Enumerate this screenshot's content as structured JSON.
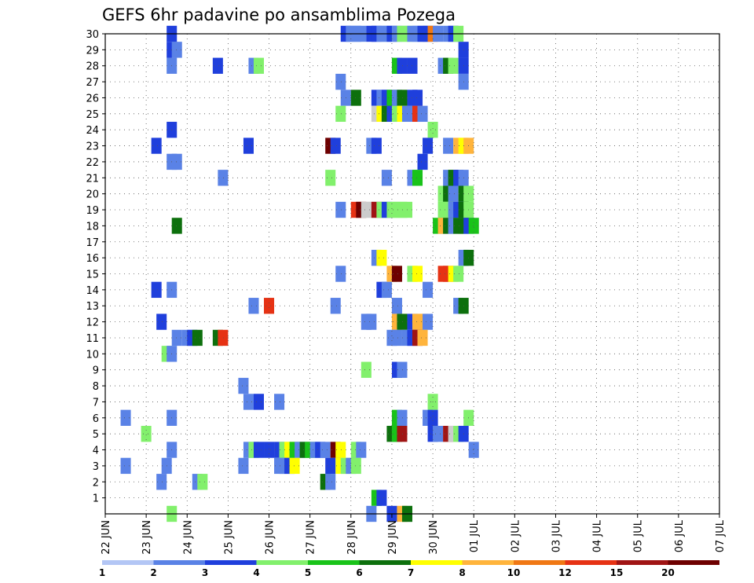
{
  "chart_data": {
    "type": "heatmap",
    "title": "GEFS 6hr padavine po ansamblima Pozega",
    "x_tick_labels": [
      "22 JUN",
      "23 JUN",
      "24 JUN",
      "25 JUN",
      "26 JUN",
      "27 JUN",
      "28 JUN",
      "29 JUN",
      "30 JUN",
      "01 JUL",
      "02 JUL",
      "03 JUL",
      "04 JUL",
      "05 JUL",
      "06 JUL",
      "07 JUL"
    ],
    "y_tick_labels": [
      "1",
      "2",
      "3",
      "4",
      "5",
      "6",
      "7",
      "8",
      "9",
      "10",
      "11",
      "12",
      "13",
      "14",
      "15",
      "16",
      "17",
      "18",
      "19",
      "20",
      "21",
      "22",
      "23",
      "24",
      "25",
      "26",
      "27",
      "28",
      "29",
      "30"
    ],
    "x_range_days": [
      0,
      15
    ],
    "y_range": [
      0,
      30
    ],
    "grid": true,
    "colorbar": {
      "labels": [
        "1",
        "2",
        "3",
        "4",
        "5",
        "6",
        "7",
        "8",
        "10",
        "12",
        "15",
        "20"
      ],
      "colors": [
        "#b3c6f5",
        "#5a82e6",
        "#1f3fdc",
        "#82f06c",
        "#19c319",
        "#0d700d",
        "#ffff00",
        "#ffb43c",
        "#f07814",
        "#e63214",
        "#a01414",
        "#6e0000"
      ]
    },
    "cells": [
      [
        30,
        23.0,
        2
      ],
      [
        30,
        23.5,
        1
      ],
      [
        30,
        24.0,
        1
      ],
      [
        30,
        24.5,
        1
      ],
      [
        30,
        25.5,
        2
      ],
      [
        30,
        26.0,
        2
      ],
      [
        30,
        26.5,
        1
      ],
      [
        30,
        27.0,
        1
      ],
      [
        30,
        27.5,
        2
      ],
      [
        30,
        28.0,
        1
      ],
      [
        30,
        28.5,
        3
      ],
      [
        30,
        29.0,
        3
      ],
      [
        30,
        29.5,
        1
      ],
      [
        30,
        30.0,
        1
      ],
      [
        30,
        30.5,
        2
      ],
      [
        30,
        31.0,
        2
      ],
      [
        30,
        31.5,
        8
      ],
      [
        30,
        32.0,
        1
      ],
      [
        30,
        33.0,
        1
      ],
      [
        30,
        33.5,
        2
      ],
      [
        30,
        34.0,
        3
      ],
      [
        30,
        6.0,
        2
      ],
      [
        29,
        6.0,
        2
      ],
      [
        29,
        6.5,
        1
      ],
      [
        29,
        34.5,
        2
      ],
      [
        28,
        6.0,
        1
      ],
      [
        28,
        10.5,
        2
      ],
      [
        28,
        14.0,
        1
      ],
      [
        28,
        14.5,
        3
      ],
      [
        28,
        28.0,
        4
      ],
      [
        28,
        28.5,
        2
      ],
      [
        28,
        29.5,
        2
      ],
      [
        28,
        32.5,
        1
      ],
      [
        28,
        33.0,
        5
      ],
      [
        28,
        33.5,
        3
      ],
      [
        28,
        34.5,
        2
      ],
      [
        27,
        22.5,
        1
      ],
      [
        27,
        34.5,
        1
      ],
      [
        26,
        23.0,
        1
      ],
      [
        26,
        24.0,
        5
      ],
      [
        26,
        26.0,
        2
      ],
      [
        26,
        26.5,
        1
      ],
      [
        26,
        27.0,
        2
      ],
      [
        26,
        27.5,
        4
      ],
      [
        26,
        28.0,
        1
      ],
      [
        26,
        28.5,
        5
      ],
      [
        26,
        29.5,
        2
      ],
      [
        26,
        30.0,
        2
      ],
      [
        25,
        22.5,
        3
      ],
      [
        25,
        26.0,
        13
      ],
      [
        25,
        26.5,
        6
      ],
      [
        25,
        27.0,
        5
      ],
      [
        25,
        27.5,
        2
      ],
      [
        25,
        28.0,
        3
      ],
      [
        25,
        28.5,
        6
      ],
      [
        25,
        29.0,
        1
      ],
      [
        25,
        29.5,
        1
      ],
      [
        25,
        30.0,
        9
      ],
      [
        25,
        30.5,
        1
      ],
      [
        24,
        6.0,
        2
      ],
      [
        24,
        31.5,
        3
      ],
      [
        23,
        4.5,
        2
      ],
      [
        23,
        13.5,
        2
      ],
      [
        23,
        21.5,
        11
      ],
      [
        23,
        22.0,
        2
      ],
      [
        23,
        25.5,
        1
      ],
      [
        23,
        26.0,
        2
      ],
      [
        23,
        31.0,
        2
      ],
      [
        23,
        33.0,
        1
      ],
      [
        23,
        34.0,
        7
      ],
      [
        23,
        34.5,
        6
      ],
      [
        23,
        35.0,
        7
      ],
      [
        22,
        6.0,
        1
      ],
      [
        22,
        6.5,
        1
      ],
      [
        22,
        30.5,
        2
      ],
      [
        21,
        11.0,
        1
      ],
      [
        21,
        21.5,
        3
      ],
      [
        21,
        27.0,
        1
      ],
      [
        21,
        29.5,
        1
      ],
      [
        21,
        30.0,
        4
      ],
      [
        21,
        33.0,
        1
      ],
      [
        21,
        33.5,
        5
      ],
      [
        21,
        34.0,
        2
      ],
      [
        21,
        34.5,
        1
      ],
      [
        20,
        32.5,
        3
      ],
      [
        20,
        33.0,
        5
      ],
      [
        20,
        33.5,
        1
      ],
      [
        20,
        34.5,
        5
      ],
      [
        20,
        35.0,
        3
      ],
      [
        19,
        22.5,
        1
      ],
      [
        19,
        24.0,
        9
      ],
      [
        19,
        24.5,
        11
      ],
      [
        19,
        25.0,
        13
      ],
      [
        19,
        25.5,
        13
      ],
      [
        19,
        26.0,
        10
      ],
      [
        19,
        26.5,
        3
      ],
      [
        19,
        27.0,
        2
      ],
      [
        19,
        27.5,
        3
      ],
      [
        19,
        28.0,
        3
      ],
      [
        19,
        28.5,
        3
      ],
      [
        19,
        29.0,
        3
      ],
      [
        19,
        32.5,
        3
      ],
      [
        19,
        33.0,
        3
      ],
      [
        19,
        33.5,
        1
      ],
      [
        19,
        34.0,
        2
      ],
      [
        19,
        34.5,
        5
      ],
      [
        19,
        35.0,
        3
      ],
      [
        18,
        32.0,
        4
      ],
      [
        18,
        32.5,
        7
      ],
      [
        18,
        33.0,
        5
      ],
      [
        18,
        33.5,
        1
      ],
      [
        18,
        34.0,
        5
      ],
      [
        18,
        34.5,
        5
      ],
      [
        18,
        35.0,
        2
      ],
      [
        18,
        35.5,
        4
      ],
      [
        18,
        6.5,
        5
      ],
      [
        16,
        26.0,
        1
      ],
      [
        16,
        26.5,
        6
      ],
      [
        16,
        34.5,
        1
      ],
      [
        16,
        35.0,
        5
      ],
      [
        15,
        22.5,
        1
      ],
      [
        15,
        27.5,
        7
      ],
      [
        15,
        28.0,
        11
      ],
      [
        15,
        29.5,
        3
      ],
      [
        15,
        30.0,
        6
      ],
      [
        15,
        32.5,
        9
      ],
      [
        15,
        33.0,
        9
      ],
      [
        15,
        33.5,
        6
      ],
      [
        15,
        34.0,
        3
      ],
      [
        14,
        4.5,
        2
      ],
      [
        14,
        6.0,
        1
      ],
      [
        14,
        26.5,
        2
      ],
      [
        14,
        27.0,
        1
      ],
      [
        14,
        31.0,
        1
      ],
      [
        13,
        14.0,
        1
      ],
      [
        13,
        15.5,
        9
      ],
      [
        13,
        22.0,
        1
      ],
      [
        13,
        28.0,
        1
      ],
      [
        13,
        34.0,
        1
      ],
      [
        13,
        34.5,
        5
      ],
      [
        12,
        5.0,
        2
      ],
      [
        12,
        25.0,
        1
      ],
      [
        12,
        25.5,
        1
      ],
      [
        12,
        28.0,
        7
      ],
      [
        12,
        28.5,
        5
      ],
      [
        12,
        29.5,
        2
      ],
      [
        12,
        30.0,
        7
      ],
      [
        12,
        30.5,
        7
      ],
      [
        12,
        31.0,
        1
      ],
      [
        11,
        6.5,
        1
      ],
      [
        11,
        7.5,
        1
      ],
      [
        11,
        8.0,
        2
      ],
      [
        11,
        8.5,
        5
      ],
      [
        11,
        10.5,
        5
      ],
      [
        11,
        11.0,
        9
      ],
      [
        11,
        27.5,
        1
      ],
      [
        11,
        28.0,
        1
      ],
      [
        11,
        29.0,
        1
      ],
      [
        11,
        29.5,
        2
      ],
      [
        11,
        30.0,
        10
      ],
      [
        11,
        30.5,
        7
      ],
      [
        10,
        5.5,
        3
      ],
      [
        10,
        6.0,
        1
      ],
      [
        9,
        25.0,
        3
      ],
      [
        9,
        28.0,
        2
      ],
      [
        9,
        28.5,
        1
      ],
      [
        8,
        13.0,
        1
      ],
      [
        7,
        13.5,
        1
      ],
      [
        7,
        14.5,
        2
      ],
      [
        7,
        16.5,
        1
      ],
      [
        7,
        31.5,
        3
      ],
      [
        6,
        1.5,
        1
      ],
      [
        6,
        6.0,
        1
      ],
      [
        6,
        28.0,
        4
      ],
      [
        6,
        28.5,
        1
      ],
      [
        6,
        31.0,
        1
      ],
      [
        6,
        31.5,
        2
      ],
      [
        6,
        35.0,
        3
      ],
      [
        5,
        3.5,
        3
      ],
      [
        5,
        27.5,
        5
      ],
      [
        5,
        28.0,
        4
      ],
      [
        5,
        28.5,
        10
      ],
      [
        5,
        31.5,
        2
      ],
      [
        5,
        32.0,
        1
      ],
      [
        5,
        33.0,
        10
      ],
      [
        5,
        33.5,
        13
      ],
      [
        5,
        34.0,
        3
      ],
      [
        5,
        34.5,
        2
      ],
      [
        4,
        6.0,
        1
      ],
      [
        4,
        13.5,
        1
      ],
      [
        4,
        14.0,
        3
      ],
      [
        4,
        14.5,
        2
      ],
      [
        4,
        15.5,
        2
      ],
      [
        4,
        16.5,
        2
      ],
      [
        4,
        17.0,
        3
      ],
      [
        4,
        17.5,
        6
      ],
      [
        4,
        18.0,
        4
      ],
      [
        4,
        18.5,
        1
      ],
      [
        4,
        19.0,
        5
      ],
      [
        4,
        19.5,
        4
      ],
      [
        4,
        20.0,
        1
      ],
      [
        4,
        20.5,
        2
      ],
      [
        4,
        21.0,
        1
      ],
      [
        4,
        22.0,
        11
      ],
      [
        4,
        22.5,
        6
      ],
      [
        4,
        24.0,
        3
      ],
      [
        4,
        24.5,
        1
      ],
      [
        4,
        35.5,
        1
      ],
      [
        3,
        1.5,
        1
      ],
      [
        3,
        5.5,
        1
      ],
      [
        3,
        13.0,
        1
      ],
      [
        3,
        16.5,
        1
      ],
      [
        3,
        17.0,
        1
      ],
      [
        3,
        17.5,
        2
      ],
      [
        3,
        18.0,
        6
      ],
      [
        3,
        21.5,
        2
      ],
      [
        3,
        22.5,
        6
      ],
      [
        3,
        23.0,
        3
      ],
      [
        3,
        23.5,
        1
      ],
      [
        3,
        24.0,
        3
      ],
      [
        2,
        5.0,
        1
      ],
      [
        2,
        8.5,
        1
      ],
      [
        2,
        9.0,
        3
      ],
      [
        2,
        21.0,
        5
      ],
      [
        2,
        21.5,
        1
      ],
      [
        1,
        26.0,
        4
      ],
      [
        1,
        26.5,
        2
      ],
      [
        0,
        6.0,
        3
      ],
      [
        0,
        25.5,
        1
      ],
      [
        0,
        27.5,
        2
      ],
      [
        0,
        28.5,
        7
      ],
      [
        0,
        29.0,
        5
      ]
    ]
  }
}
